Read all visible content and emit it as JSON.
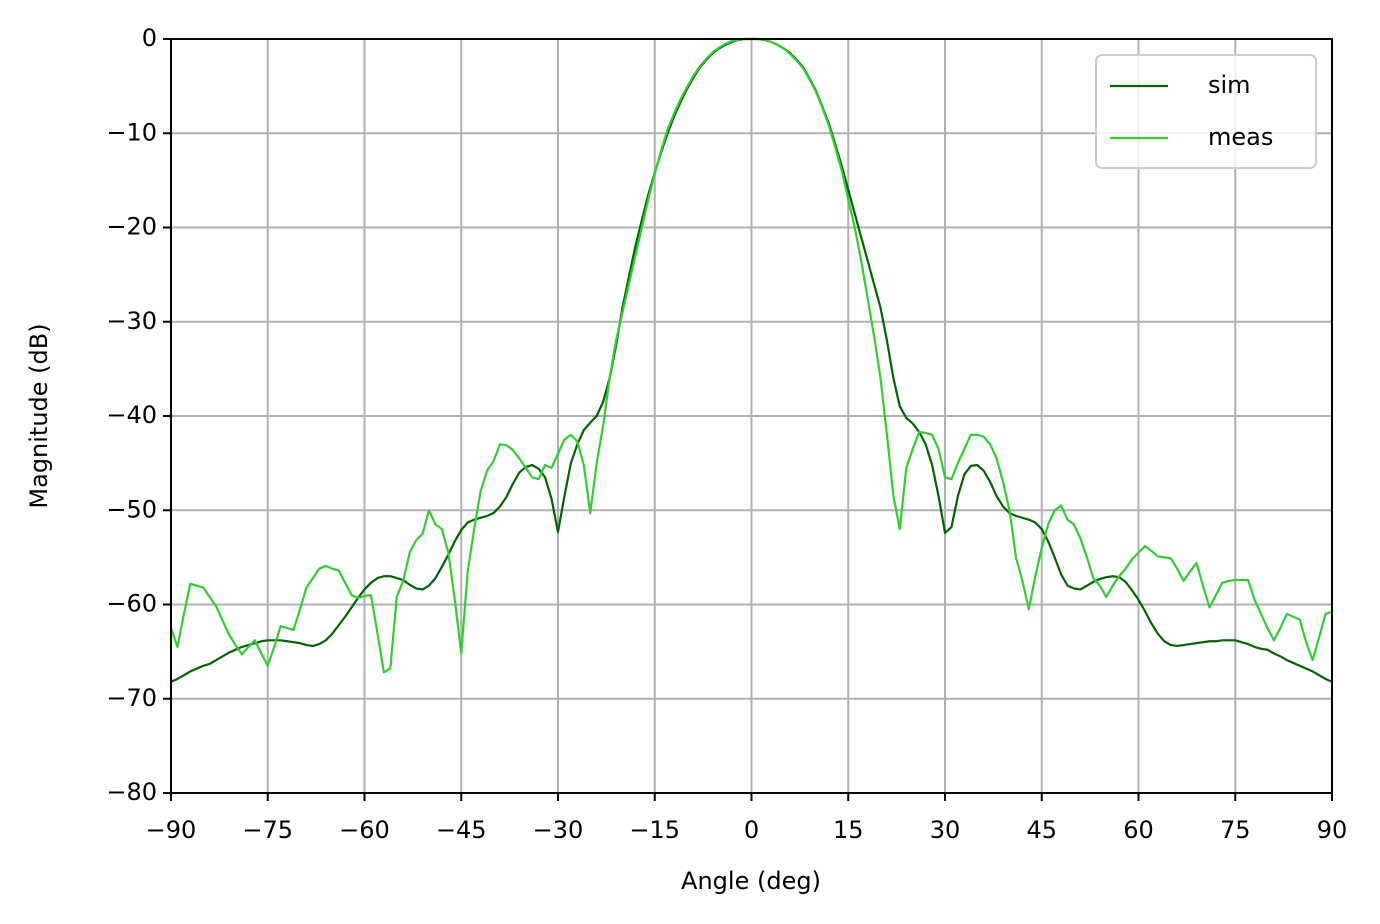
{
  "chart_data": {
    "type": "line",
    "xlabel": "Angle (deg)",
    "ylabel": "Magnitude (dB)",
    "x": [
      -90,
      -89,
      -88,
      -87,
      -86,
      -85,
      -84,
      -83,
      -82,
      -81,
      -80,
      -79,
      -78,
      -77,
      -76,
      -75,
      -74,
      -73,
      -72,
      -71,
      -70,
      -69,
      -68,
      -67,
      -66,
      -65,
      -64,
      -63,
      -62,
      -61,
      -60,
      -59,
      -58,
      -57,
      -56,
      -55,
      -54,
      -53,
      -52,
      -51,
      -50,
      -49,
      -48,
      -47,
      -46,
      -45,
      -44,
      -43,
      -42,
      -41,
      -40,
      -39,
      -38,
      -37,
      -36,
      -35,
      -34,
      -33,
      -32,
      -31,
      -30,
      -29,
      -28,
      -27,
      -26,
      -25,
      -24,
      -23,
      -22,
      -21,
      -20,
      -19,
      -18,
      -17,
      -16,
      -15,
      -14,
      -13,
      -12,
      -11,
      -10,
      -9,
      -8,
      -7,
      -6,
      -5,
      -4,
      -3,
      -2,
      -1,
      0,
      1,
      2,
      3,
      4,
      5,
      6,
      7,
      8,
      9,
      10,
      11,
      12,
      13,
      14,
      15,
      16,
      17,
      18,
      19,
      20,
      21,
      22,
      23,
      24,
      25,
      26,
      27,
      28,
      29,
      30,
      31,
      32,
      33,
      34,
      35,
      36,
      37,
      38,
      39,
      40,
      41,
      42,
      43,
      44,
      45,
      46,
      47,
      48,
      49,
      50,
      51,
      52,
      53,
      54,
      55,
      56,
      57,
      58,
      59,
      60,
      61,
      62,
      63,
      64,
      65,
      66,
      67,
      68,
      69,
      70,
      71,
      72,
      73,
      74,
      75,
      76,
      77,
      78,
      79,
      80,
      81,
      82,
      83,
      84,
      85,
      86,
      87,
      88,
      89,
      90
    ],
    "series": [
      {
        "name": "sim",
        "color": "#006400",
        "values": [
          -68.2,
          -67.9,
          -67.5,
          -67.1,
          -66.8,
          -66.5,
          -66.3,
          -65.9,
          -65.5,
          -65.1,
          -64.8,
          -64.5,
          -64.3,
          -64.1,
          -63.9,
          -63.8,
          -63.8,
          -63.8,
          -63.9,
          -64.0,
          -64.1,
          -64.3,
          -64.4,
          -64.2,
          -63.8,
          -63.1,
          -62.2,
          -61.3,
          -60.3,
          -59.3,
          -58.4,
          -57.7,
          -57.2,
          -57.0,
          -57.0,
          -57.2,
          -57.4,
          -57.9,
          -58.3,
          -58.4,
          -58.0,
          -57.2,
          -56.0,
          -54.7,
          -53.3,
          -52.1,
          -51.3,
          -51.0,
          -50.8,
          -50.6,
          -50.3,
          -49.6,
          -48.6,
          -47.2,
          -46.0,
          -45.4,
          -45.2,
          -45.6,
          -46.5,
          -48.8,
          -52.3,
          -48.5,
          -45.0,
          -43.0,
          -41.5,
          -40.7,
          -40.0,
          -38.5,
          -36.0,
          -32.5,
          -28.5,
          -25.2,
          -22.0,
          -19.2,
          -16.5,
          -14.2,
          -12.0,
          -10.0,
          -8.2,
          -6.7,
          -5.3,
          -4.1,
          -3.0,
          -2.2,
          -1.5,
          -1.0,
          -0.6,
          -0.3,
          -0.1,
          0,
          0,
          0,
          -0.1,
          -0.3,
          -0.6,
          -1.0,
          -1.5,
          -2.2,
          -3.0,
          -4.2,
          -5.5,
          -7.2,
          -9.0,
          -11.2,
          -13.5,
          -16.0,
          -18.5,
          -21.0,
          -23.5,
          -26.0,
          -28.5,
          -32.0,
          -36.0,
          -39.0,
          -40.2,
          -40.8,
          -41.7,
          -43.0,
          -45.2,
          -48.5,
          -52.4,
          -51.8,
          -48.5,
          -46.2,
          -45.3,
          -45.2,
          -45.8,
          -47.0,
          -48.5,
          -49.6,
          -50.3,
          -50.6,
          -50.8,
          -51.0,
          -51.3,
          -52.0,
          -53.3,
          -55.0,
          -56.8,
          -58.0,
          -58.3,
          -58.4,
          -58.0,
          -57.6,
          -57.3,
          -57.1,
          -57.0,
          -57.1,
          -57.6,
          -58.5,
          -59.5,
          -60.7,
          -62.0,
          -63.1,
          -63.9,
          -64.3,
          -64.4,
          -64.3,
          -64.2,
          -64.1,
          -64.0,
          -63.9,
          -63.9,
          -63.8,
          -63.8,
          -63.8,
          -64.0,
          -64.2,
          -64.5,
          -64.7,
          -64.8,
          -65.2,
          -65.5,
          -65.9,
          -66.2,
          -66.5,
          -66.8,
          -67.1,
          -67.5,
          -67.9,
          -68.2
        ]
      },
      {
        "name": "meas",
        "color": "#32cd32",
        "values": [
          -62.5,
          -64.5,
          -61.0,
          -57.8,
          -58.0,
          -58.2,
          -59.2,
          -60.2,
          -61.7,
          -63.2,
          -64.3,
          -65.3,
          -64.5,
          -63.8,
          -65.2,
          -66.5,
          -64.5,
          -62.3,
          -62.5,
          -62.7,
          -60.5,
          -58.2,
          -57.2,
          -56.2,
          -55.9,
          -56.2,
          -56.4,
          -57.7,
          -59.0,
          -59.3,
          -59.1,
          -59.0,
          -63.0,
          -67.2,
          -66.8,
          -59.2,
          -57.5,
          -54.5,
          -53.2,
          -52.5,
          -50.0,
          -51.5,
          -52.0,
          -54.5,
          -59.5,
          -65.2,
          -56.5,
          -52.0,
          -48.0,
          -45.8,
          -44.8,
          -43.0,
          -43.1,
          -43.6,
          -44.5,
          -45.5,
          -46.5,
          -46.7,
          -45.2,
          -45.5,
          -44.0,
          -42.5,
          -42.0,
          -42.7,
          -45.2,
          -50.3,
          -45.0,
          -41.0,
          -36.0,
          -32.0,
          -29.0,
          -26.0,
          -23.0,
          -20.0,
          -17.0,
          -14.3,
          -11.8,
          -9.6,
          -7.9,
          -6.4,
          -5.1,
          -3.9,
          -2.9,
          -2.1,
          -1.4,
          -0.9,
          -0.5,
          -0.2,
          -0.1,
          0,
          0,
          0,
          -0.1,
          -0.3,
          -0.6,
          -1.0,
          -1.6,
          -2.3,
          -3.1,
          -4.3,
          -5.6,
          -7.3,
          -9.2,
          -11.5,
          -14.0,
          -17.0,
          -20.0,
          -23.5,
          -27.5,
          -31.5,
          -36.0,
          -42.0,
          -48.5,
          -52.0,
          -45.5,
          -43.5,
          -41.7,
          -41.8,
          -42.0,
          -43.5,
          -46.5,
          -46.7,
          -45.0,
          -43.5,
          -42.0,
          -42.0,
          -42.2,
          -43.0,
          -44.5,
          -47.0,
          -50.0,
          -55.0,
          -57.5,
          -60.5,
          -57.0,
          -54.0,
          -51.5,
          -50.0,
          -49.5,
          -51.0,
          -51.5,
          -53.0,
          -55.0,
          -57.2,
          -58.0,
          -59.2,
          -58.0,
          -57.0,
          -56.2,
          -55.2,
          -54.5,
          -53.8,
          -54.3,
          -54.9,
          -55.0,
          -55.1,
          -56.2,
          -57.5,
          -56.5,
          -55.6,
          -58.0,
          -60.3,
          -59.0,
          -57.7,
          -57.5,
          -57.4,
          -57.4,
          -57.4,
          -59.5,
          -61.0,
          -62.5,
          -63.8,
          -62.5,
          -61.0,
          -61.3,
          -61.6,
          -64.0,
          -65.9,
          -63.5,
          -61.0,
          -60.8
        ]
      }
    ],
    "xlim": [
      -90,
      90
    ],
    "xticks": [
      {
        "value": -90,
        "label": "−90"
      },
      {
        "value": -75,
        "label": "−75"
      },
      {
        "value": -60,
        "label": "−60"
      },
      {
        "value": -45,
        "label": "−45"
      },
      {
        "value": -30,
        "label": "−30"
      },
      {
        "value": -15,
        "label": "−15"
      },
      0,
      15,
      30,
      45,
      60,
      75,
      90
    ],
    "ylim": [
      -80,
      0
    ],
    "yticks": [
      {
        "value": -80,
        "label": "−80"
      },
      {
        "value": -70,
        "label": "−70"
      },
      {
        "value": -60,
        "label": "−60"
      },
      {
        "value": -50,
        "label": "−50"
      },
      {
        "value": -40,
        "label": "−40"
      },
      {
        "value": -30,
        "label": "−30"
      },
      {
        "value": -20,
        "label": "−20"
      },
      {
        "value": -10,
        "label": "−10"
      },
      0
    ],
    "grid": true,
    "legend": "upper right"
  }
}
